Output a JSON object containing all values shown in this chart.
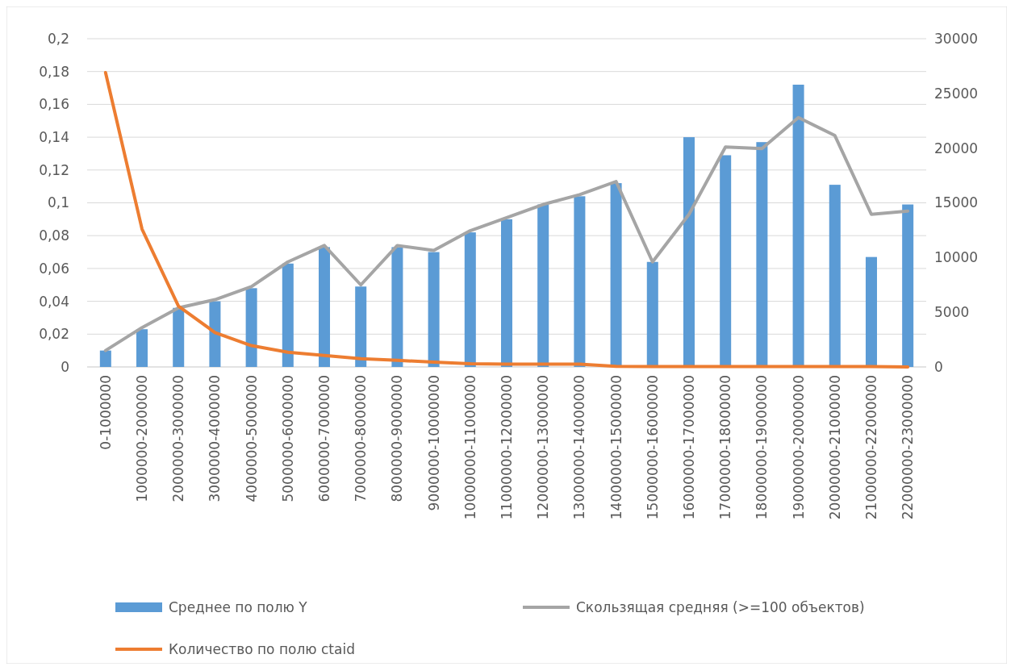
{
  "chart_data": {
    "type": "bar",
    "categories": [
      "0-1000000",
      "1000000-2000000",
      "2000000-3000000",
      "3000000-4000000",
      "4000000-5000000",
      "5000000-6000000",
      "6000000-7000000",
      "7000000-8000000",
      "8000000-9000000",
      "9000000-10000000",
      "10000000-11000000",
      "11000000-12000000",
      "12000000-13000000",
      "13000000-14000000",
      "14000000-15000000",
      "15000000-16000000",
      "16000000-17000000",
      "17000000-18000000",
      "18000000-19000000",
      "19000000-20000000",
      "20000000-21000000",
      "21000000-22000000",
      "22000000-23000000"
    ],
    "series": [
      {
        "name": "Среднее по полю Y",
        "color": "#5b9bd5",
        "values": [
          0.01,
          0.023,
          0.036,
          0.04,
          0.048,
          0.063,
          0.073,
          0.049,
          0.073,
          0.07,
          0.082,
          0.09,
          0.099,
          0.104,
          0.112,
          0.064,
          0.14,
          0.129,
          0.137,
          0.172,
          0.111,
          0.067,
          0.099
        ]
      },
      {
        "name": "Скользящая средняя (>=100 объектов)",
        "type": "line",
        "color": "#a5a5a5",
        "values": [
          0.01,
          0.024,
          0.036,
          0.041,
          0.049,
          0.064,
          0.074,
          0.05,
          0.074,
          0.071,
          0.083,
          0.091,
          0.099,
          0.105,
          0.113,
          0.064,
          0.093,
          0.134,
          0.133,
          0.152,
          0.141,
          0.093,
          0.095
        ]
      },
      {
        "name": "Количество по полю ctaid",
        "type": "line",
        "axis": "y2",
        "color": "#ed7d31",
        "values": [
          26900,
          12600,
          5550,
          3150,
          1950,
          1350,
          1050,
          750,
          600,
          450,
          300,
          250,
          250,
          250,
          50,
          30,
          30,
          30,
          30,
          30,
          30,
          30,
          0
        ]
      }
    ],
    "ylim": [
      0,
      0.2
    ],
    "yticks": [
      {
        "value": 0,
        "label": "0"
      },
      {
        "value": 0.02,
        "label": "0,02"
      },
      {
        "value": 0.04,
        "label": "0,04"
      },
      {
        "value": 0.06,
        "label": "0,06"
      },
      {
        "value": 0.08,
        "label": "0,08"
      },
      {
        "value": 0.1,
        "label": "0,1"
      },
      {
        "value": 0.12,
        "label": "0,12"
      },
      {
        "value": 0.14,
        "label": "0,14"
      },
      {
        "value": 0.16,
        "label": "0,16"
      },
      {
        "value": 0.18,
        "label": "0,18"
      },
      {
        "value": 0.2,
        "label": "0,2"
      }
    ],
    "y2lim": [
      0,
      30000
    ],
    "y2ticks": [
      0,
      5000,
      10000,
      15000,
      20000,
      25000,
      30000
    ],
    "grid": "y",
    "legend": "bottom",
    "marker": "none",
    "line_style": "solid"
  }
}
